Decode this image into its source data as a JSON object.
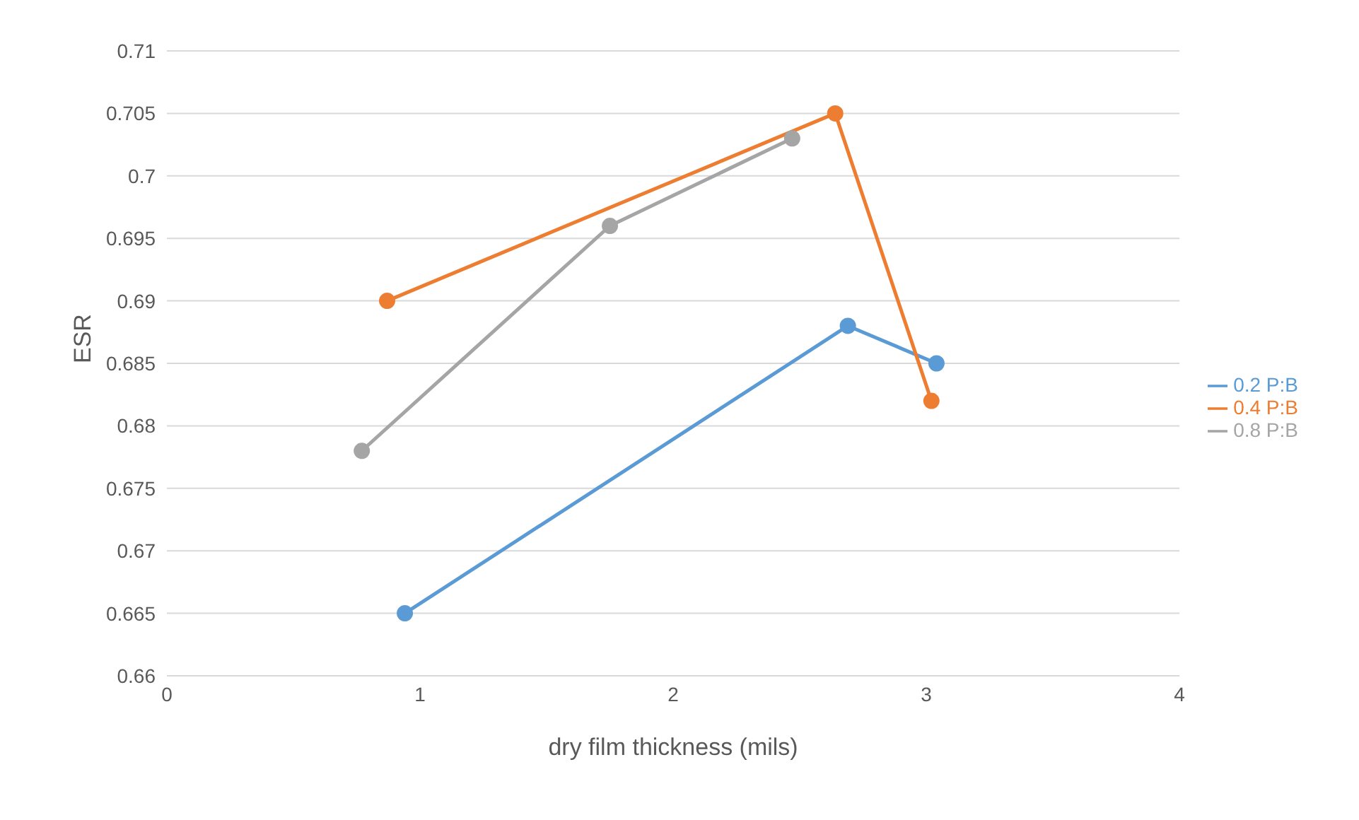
{
  "chart_data": {
    "type": "line",
    "xlabel": "dry film thickness (mils)",
    "ylabel": "ESR",
    "xlim": [
      0,
      4
    ],
    "xticks": [
      0,
      1,
      2,
      3,
      4
    ],
    "ylim": [
      0.66,
      0.71
    ],
    "yticks": [
      0.66,
      0.665,
      0.67,
      0.675,
      0.68,
      0.685,
      0.69,
      0.695,
      0.7,
      0.705,
      0.71
    ],
    "grid": "y",
    "legend": "right",
    "marker": "circle",
    "line_style": "solid",
    "series": [
      {
        "name": "0.2 P:B",
        "color": "#5b9bd5",
        "x": [
          0.94,
          2.69,
          3.04
        ],
        "values": [
          0.665,
          0.688,
          0.685
        ]
      },
      {
        "name": "0.4 P:B",
        "color": "#ed7d31",
        "x": [
          0.87,
          2.64,
          3.02
        ],
        "values": [
          0.69,
          0.705,
          0.682
        ]
      },
      {
        "name": "0.8 P:B",
        "color": "#a5a5a5",
        "x": [
          0.77,
          1.75,
          2.47
        ],
        "values": [
          0.678,
          0.696,
          0.703
        ]
      }
    ]
  }
}
